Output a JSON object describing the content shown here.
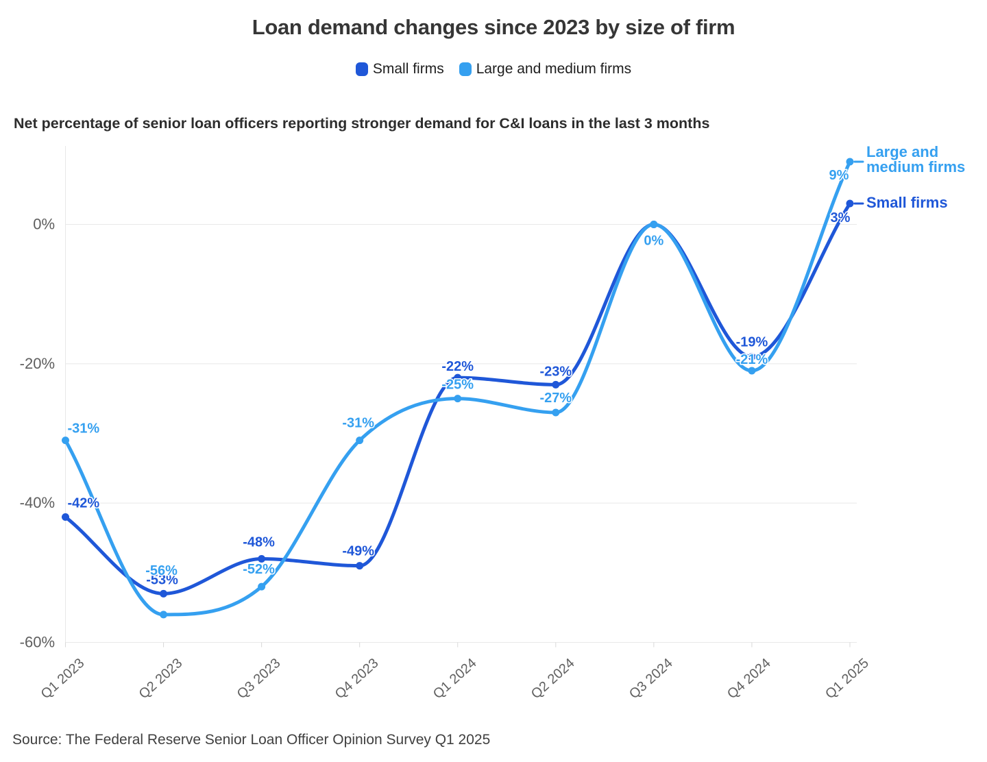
{
  "header": {
    "title": "Loan demand changes since 2023 by size of firm",
    "subtitle": "Net percentage of senior loan officers reporting stronger demand for C&I loans in the last 3 months"
  },
  "legend": {
    "items": [
      {
        "label": "Small firms",
        "color": "#1f57d8"
      },
      {
        "label": "Large and medium firms",
        "color": "#35a0f0"
      }
    ]
  },
  "footer": {
    "source": "Source: The Federal Reserve Senior Loan Officer Opinion Survey Q1 2025"
  },
  "colors": {
    "small_firms": "#1f57d8",
    "large_medium_firms": "#35a0f0",
    "grid": "#e8e8e8",
    "axis_text": "#616161"
  },
  "chart_data": {
    "type": "line",
    "categories": [
      "Q1 2023",
      "Q2 2023",
      "Q3 2023",
      "Q4 2023",
      "Q1 2024",
      "Q2 2024",
      "Q3 2024",
      "Q4 2024",
      "Q1 2025"
    ],
    "series": [
      {
        "name": "Small firms",
        "color": "#1f57d8",
        "values": [
          -42,
          -53,
          -48,
          -49,
          -22,
          -23,
          0,
          -19,
          3
        ],
        "point_labels": [
          "-42%",
          "-53%",
          "-48%",
          "-49%",
          "-22%",
          "-23%",
          null,
          "-19%",
          "3%"
        ],
        "end_label_lines": [
          "Small firms"
        ]
      },
      {
        "name": "Large and medium firms",
        "color": "#35a0f0",
        "values": [
          -31,
          -56,
          -52,
          -31,
          -25,
          -27,
          0,
          -21,
          9
        ],
        "point_labels": [
          "-31%",
          "-56%",
          "-52%",
          "-31%",
          "-25%",
          "-27%",
          "0%",
          "-21%",
          "9%"
        ],
        "end_label_lines": [
          "Large and",
          "medium firms"
        ]
      }
    ],
    "yticks": [
      0,
      -20,
      -40,
      -60
    ],
    "ytick_labels": [
      "0%",
      "-20%",
      "-40%",
      "-60%"
    ],
    "ylim": [
      -60,
      10
    ],
    "grid": true,
    "legend_position": "top",
    "xlabel": "",
    "ylabel": ""
  }
}
